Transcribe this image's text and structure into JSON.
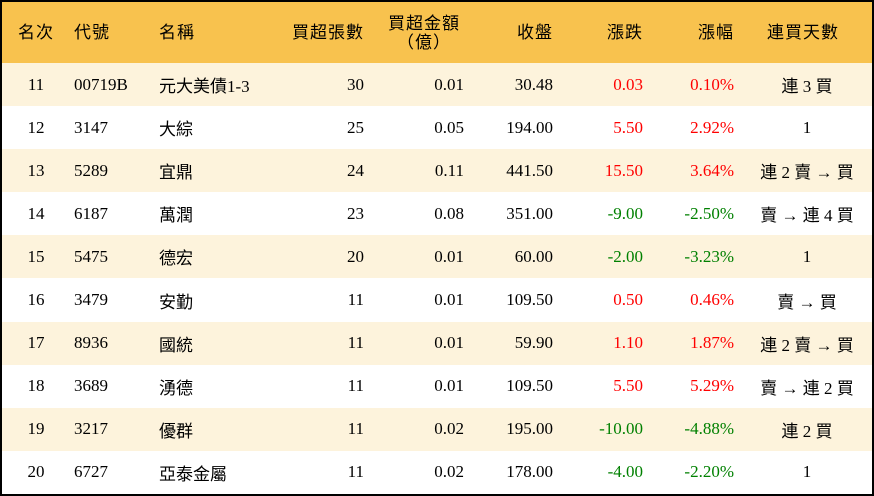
{
  "headers": {
    "rank": "名次",
    "code": "代號",
    "name": "名稱",
    "shares": "買超張數",
    "amount_line1": "買超金額",
    "amount_line2": "（億）",
    "close": "收盤",
    "change": "漲跌",
    "pct": "漲幅",
    "streak": "連買天數"
  },
  "colors": {
    "header_bg": "#f8c24e",
    "alt_row_bg": "#fdf3dc",
    "up": "#ff0000",
    "down": "#008000"
  },
  "rows": [
    {
      "rank": "11",
      "code": "00719B",
      "name": "元大美債1-3",
      "shares": "30",
      "amount": "0.01",
      "close": "30.48",
      "change": "0.03",
      "pct": "0.10%",
      "streak": "連 3 買",
      "dir": "up"
    },
    {
      "rank": "12",
      "code": "3147",
      "name": "大綜",
      "shares": "25",
      "amount": "0.05",
      "close": "194.00",
      "change": "5.50",
      "pct": "2.92%",
      "streak": "1",
      "dir": "up"
    },
    {
      "rank": "13",
      "code": "5289",
      "name": "宜鼎",
      "shares": "24",
      "amount": "0.11",
      "close": "441.50",
      "change": "15.50",
      "pct": "3.64%",
      "streak": "連 2 賣 → 買",
      "dir": "up"
    },
    {
      "rank": "14",
      "code": "6187",
      "name": "萬潤",
      "shares": "23",
      "amount": "0.08",
      "close": "351.00",
      "change": "-9.00",
      "pct": "-2.50%",
      "streak": "賣 → 連 4 買",
      "dir": "down"
    },
    {
      "rank": "15",
      "code": "5475",
      "name": "德宏",
      "shares": "20",
      "amount": "0.01",
      "close": "60.00",
      "change": "-2.00",
      "pct": "-3.23%",
      "streak": "1",
      "dir": "down"
    },
    {
      "rank": "16",
      "code": "3479",
      "name": "安勤",
      "shares": "11",
      "amount": "0.01",
      "close": "109.50",
      "change": "0.50",
      "pct": "0.46%",
      "streak": "賣 → 買",
      "dir": "up"
    },
    {
      "rank": "17",
      "code": "8936",
      "name": "國統",
      "shares": "11",
      "amount": "0.01",
      "close": "59.90",
      "change": "1.10",
      "pct": "1.87%",
      "streak": "連 2 賣 → 買",
      "dir": "up"
    },
    {
      "rank": "18",
      "code": "3689",
      "name": "湧德",
      "shares": "11",
      "amount": "0.01",
      "close": "109.50",
      "change": "5.50",
      "pct": "5.29%",
      "streak": "賣 → 連 2 買",
      "dir": "up"
    },
    {
      "rank": "19",
      "code": "3217",
      "name": "優群",
      "shares": "11",
      "amount": "0.02",
      "close": "195.00",
      "change": "-10.00",
      "pct": "-4.88%",
      "streak": "連 2 買",
      "dir": "down"
    },
    {
      "rank": "20",
      "code": "6727",
      "name": "亞泰金屬",
      "shares": "11",
      "amount": "0.02",
      "close": "178.00",
      "change": "-4.00",
      "pct": "-2.20%",
      "streak": "1",
      "dir": "down"
    }
  ]
}
